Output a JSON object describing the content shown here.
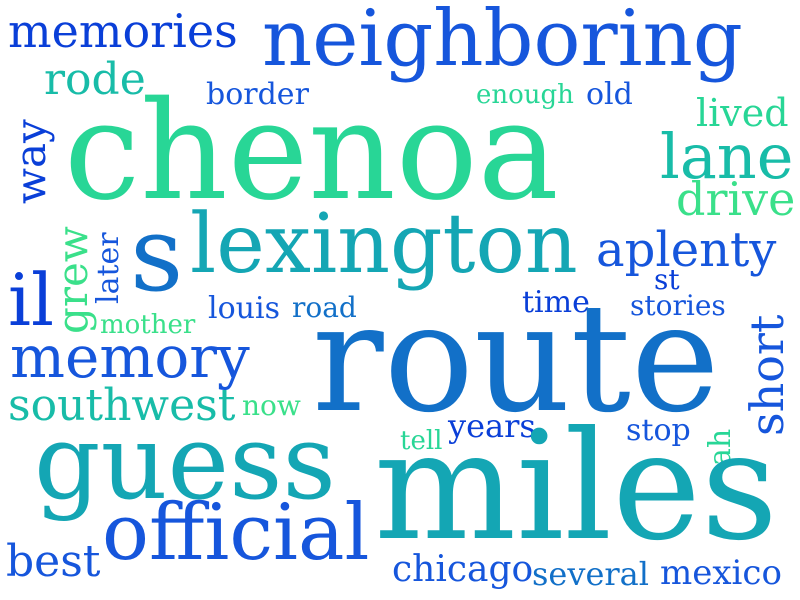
{
  "palette": {
    "blue": "#0a3fd8",
    "royal": "#1656dc",
    "mid": "#1270c8",
    "teal": "#14a6b4",
    "sea": "#18bca8",
    "green": "#28d696",
    "mint": "#3ae08a"
  },
  "words": [
    {
      "id": "memories",
      "text": "memories",
      "color": "blue"
    },
    {
      "id": "neighboring",
      "text": "neighboring",
      "color": "royal"
    },
    {
      "id": "rode",
      "text": "rode",
      "color": "sea"
    },
    {
      "id": "border",
      "text": "border",
      "color": "royal"
    },
    {
      "id": "enough",
      "text": "enough",
      "color": "green"
    },
    {
      "id": "old",
      "text": "old",
      "color": "royal"
    },
    {
      "id": "way",
      "text": "way",
      "color": "blue"
    },
    {
      "id": "chenoa",
      "text": "chenoa",
      "color": "green"
    },
    {
      "id": "lived",
      "text": "lived",
      "color": "green"
    },
    {
      "id": "lane",
      "text": "lane",
      "color": "sea"
    },
    {
      "id": "drive",
      "text": "drive",
      "color": "mint"
    },
    {
      "id": "grew",
      "text": "grew",
      "color": "mint"
    },
    {
      "id": "later",
      "text": "later",
      "color": "royal"
    },
    {
      "id": "s",
      "text": "s",
      "color": "mid"
    },
    {
      "id": "lexington",
      "text": "lexington",
      "color": "teal"
    },
    {
      "id": "aplenty",
      "text": "aplenty",
      "color": "royal"
    },
    {
      "id": "il",
      "text": "il",
      "color": "blue"
    },
    {
      "id": "st",
      "text": "st",
      "color": "blue"
    },
    {
      "id": "louis",
      "text": "louis",
      "color": "royal"
    },
    {
      "id": "road",
      "text": "road",
      "color": "mid"
    },
    {
      "id": "time",
      "text": "time",
      "color": "blue"
    },
    {
      "id": "stories",
      "text": "stories",
      "color": "royal"
    },
    {
      "id": "mother",
      "text": "mother",
      "color": "mint"
    },
    {
      "id": "short",
      "text": "short",
      "color": "royal"
    },
    {
      "id": "memory",
      "text": "memory",
      "color": "royal"
    },
    {
      "id": "route",
      "text": "route",
      "color": "mid"
    },
    {
      "id": "southwest",
      "text": "southwest",
      "color": "sea"
    },
    {
      "id": "now",
      "text": "now",
      "color": "mint"
    },
    {
      "id": "tell",
      "text": "tell",
      "color": "green"
    },
    {
      "id": "years",
      "text": "years",
      "color": "blue"
    },
    {
      "id": "stop",
      "text": "stop",
      "color": "royal"
    },
    {
      "id": "ah",
      "text": "ah",
      "color": "green"
    },
    {
      "id": "guess",
      "text": "guess",
      "color": "teal"
    },
    {
      "id": "miles",
      "text": "miles",
      "color": "teal"
    },
    {
      "id": "official",
      "text": "official",
      "color": "royal"
    },
    {
      "id": "best",
      "text": "best",
      "color": "royal"
    },
    {
      "id": "chicago",
      "text": "chicago",
      "color": "royal"
    },
    {
      "id": "several",
      "text": "several",
      "color": "mid"
    },
    {
      "id": "mexico",
      "text": "mexico",
      "color": "royal"
    }
  ]
}
